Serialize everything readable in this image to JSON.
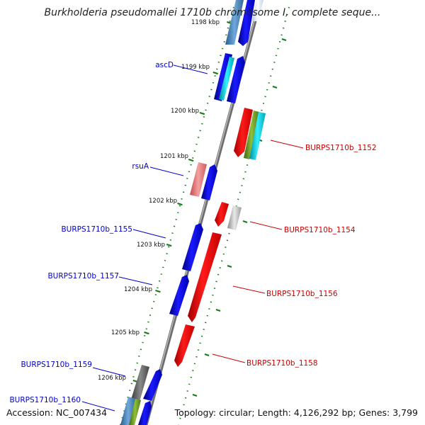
{
  "title": "Burkholderia pseudomallei 1710b chromosome I, complete seque...",
  "accession": "Accession: NC_007434",
  "summary": "Topology: circular; Length: 4,126,292 bp; Genes: 3,799",
  "colors": {
    "forward_label": "#0000cc",
    "reverse_label": "#cc0000",
    "tick": "#1a7a1a",
    "backbone": "#888888"
  },
  "ticks": [
    "1198 kbp",
    "1199 kbp",
    "1200 kbp",
    "1201 kbp",
    "1202 kbp",
    "1203 kbp",
    "1204 kbp",
    "1205 kbp",
    "1206 kbp"
  ],
  "gene_labels": {
    "ascD": "ascD",
    "rsuA": "rsuA",
    "g1152": "BURPS1710b_1152",
    "g1154": "BURPS1710b_1154",
    "g1155": "BURPS1710b_1155",
    "g1156": "BURPS1710b_1156",
    "g1157": "BURPS1710b_1157",
    "g1158": "BURPS1710b_1158",
    "g1159": "BURPS1710b_1159",
    "g1160": "BURPS1710b_1160"
  }
}
